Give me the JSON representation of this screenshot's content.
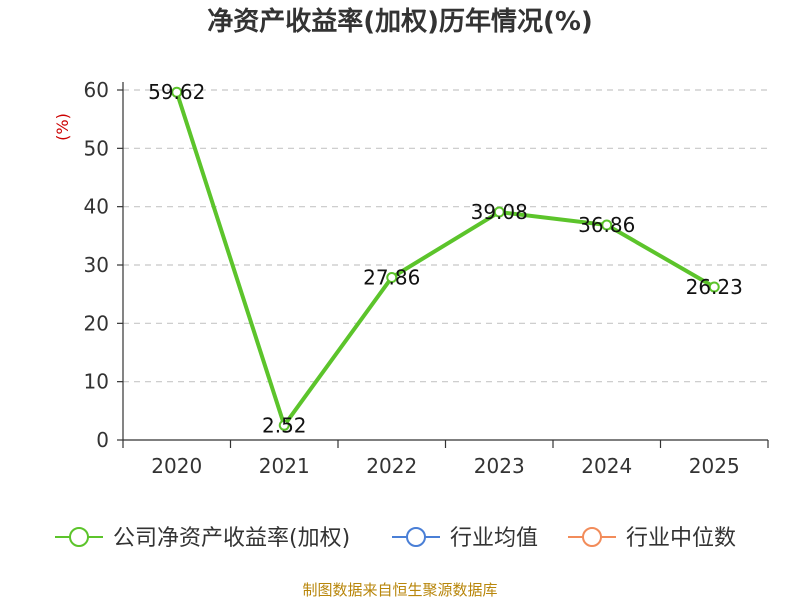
{
  "colors": {
    "series": "#5cc42b",
    "industry_avg": "#4a7fd6",
    "industry_median": "#f28c5a",
    "ylabel": "#cc0000",
    "source": "#b8860b",
    "grid": "#c8c8c8",
    "axis": "#333333"
  },
  "chart_data": {
    "type": "line",
    "title": "净资产收益率(加权)历年情况(%)",
    "xlabel": "",
    "ylabel": "(%)",
    "categories": [
      "2020",
      "2021",
      "2022",
      "2023",
      "2024",
      "2025"
    ],
    "yticks": [
      0,
      10,
      20,
      30,
      40,
      50,
      60
    ],
    "ylim": [
      0,
      60
    ],
    "grid": true,
    "series": [
      {
        "name": "公司净资产收益率(加权)",
        "values": [
          59.62,
          2.52,
          27.86,
          39.08,
          36.86,
          26.23
        ],
        "labels": [
          "59.62",
          "2.52",
          "27.86",
          "39.08",
          "36.86",
          "26.23"
        ]
      }
    ],
    "legend": [
      "公司净资产收益率(加权)",
      "行业均值",
      "行业中位数"
    ],
    "legend_position": "bottom"
  },
  "source": "制图数据来自恒生聚源数据库"
}
